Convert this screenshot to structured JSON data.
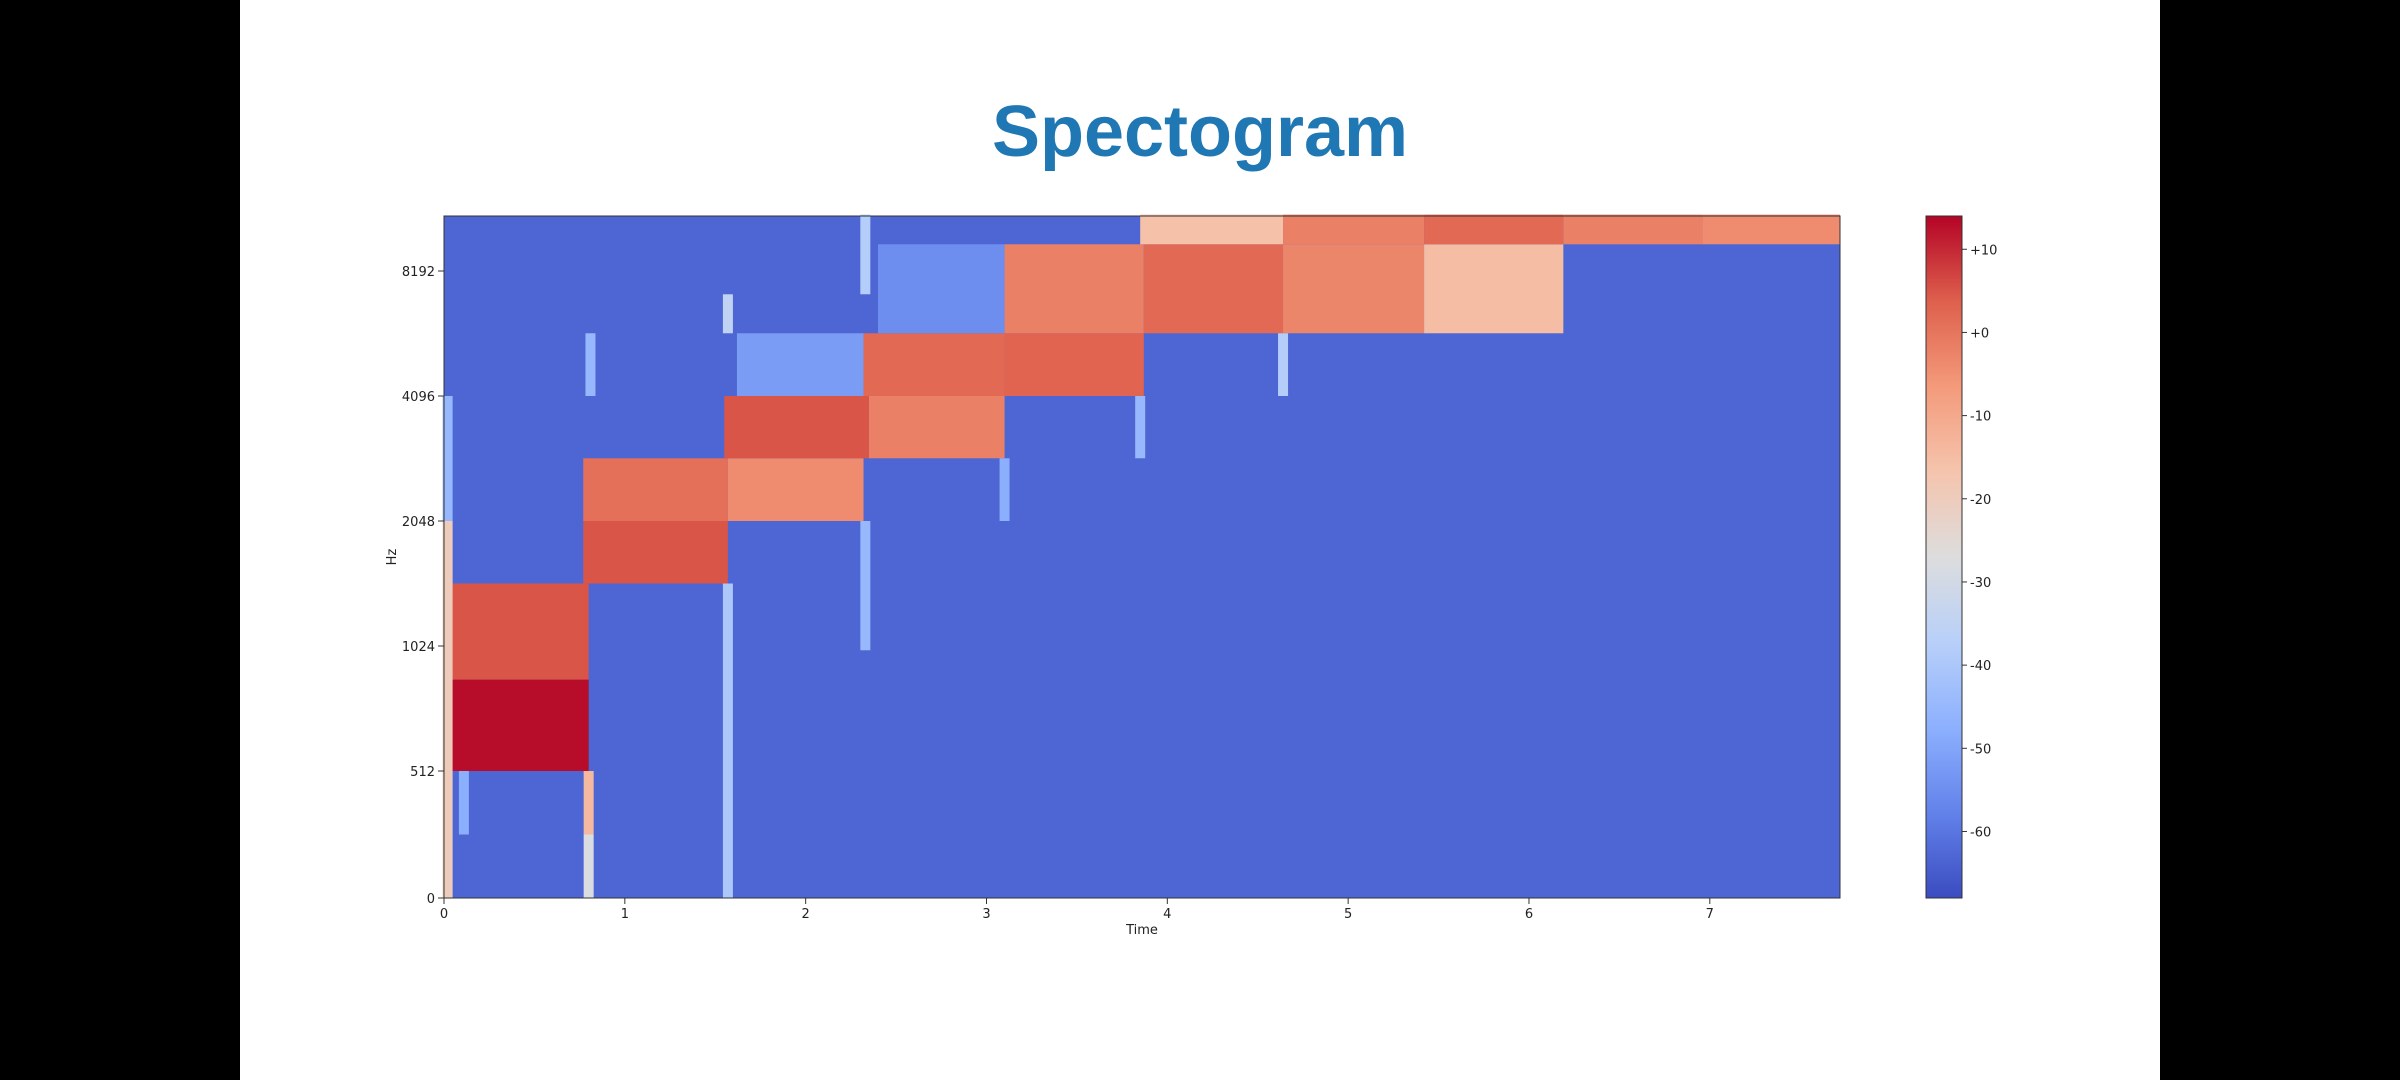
{
  "chart_data": {
    "type": "heatmap",
    "title": "Spectogram",
    "xlabel": "Time",
    "ylabel": "Hz",
    "xlim": [
      0,
      7.72
    ],
    "x_ticks": [
      0,
      1,
      2,
      3,
      4,
      5,
      6,
      7
    ],
    "y_ticks": [
      0,
      512,
      1024,
      2048,
      4096,
      8192
    ],
    "colorbar": {
      "ticks": [
        "+10",
        "+0",
        "-10",
        "-20",
        "-30",
        "-40",
        "-50",
        "-60"
      ],
      "tick_values": [
        10,
        0,
        -10,
        -20,
        -30,
        -40,
        -50,
        -60
      ],
      "range": [
        -68,
        14
      ],
      "colormap": "coolwarm"
    },
    "background_db": -63,
    "y_scale": "log2 (above 512 Hz)",
    "cells": [
      {
        "t0": 0.0,
        "t1": 0.8,
        "f0": 512,
        "f1": 850,
        "db": 13
      },
      {
        "t0": 0.0,
        "t1": 0.8,
        "f0": 850,
        "f1": 1448,
        "db": 5
      },
      {
        "t0": 0.77,
        "t1": 1.57,
        "f0": 1448,
        "f1": 2048,
        "db": 5
      },
      {
        "t0": 0.77,
        "t1": 1.57,
        "f0": 2048,
        "f1": 2900,
        "db": 1
      },
      {
        "t0": 1.57,
        "t1": 2.32,
        "f0": 2048,
        "f1": 2900,
        "db": -4
      },
      {
        "t0": 1.55,
        "t1": 2.35,
        "f0": 2900,
        "f1": 4096,
        "db": 5
      },
      {
        "t0": 2.35,
        "t1": 3.1,
        "f0": 2900,
        "f1": 4096,
        "db": -2
      },
      {
        "t0": 1.62,
        "t1": 2.32,
        "f0": 4096,
        "f1": 5800,
        "db": -52
      },
      {
        "t0": 2.32,
        "t1": 3.1,
        "f0": 4096,
        "f1": 5800,
        "db": 2
      },
      {
        "t0": 3.1,
        "t1": 3.87,
        "f0": 4096,
        "f1": 5800,
        "db": 3
      },
      {
        "t0": 2.4,
        "t1": 3.1,
        "f0": 5800,
        "f1": 9500,
        "db": -55
      },
      {
        "t0": 3.1,
        "t1": 3.87,
        "f0": 5800,
        "f1": 9500,
        "db": -2
      },
      {
        "t0": 3.87,
        "t1": 4.64,
        "f0": 5800,
        "f1": 9500,
        "db": 2
      },
      {
        "t0": 4.64,
        "t1": 5.42,
        "f0": 5800,
        "f1": 9500,
        "db": -3
      },
      {
        "t0": 5.42,
        "t1": 6.19,
        "f0": 5800,
        "f1": 9500,
        "db": -15
      },
      {
        "t0": 3.85,
        "t1": 4.64,
        "f0": 9500,
        "f1": 11200,
        "db": -16
      },
      {
        "t0": 4.64,
        "t1": 5.42,
        "f0": 9500,
        "f1": 11200,
        "db": -2
      },
      {
        "t0": 5.42,
        "t1": 6.19,
        "f0": 9500,
        "f1": 11200,
        "db": 2
      },
      {
        "t0": 6.19,
        "t1": 6.96,
        "f0": 9500,
        "f1": 11200,
        "db": -2
      },
      {
        "t0": 6.96,
        "t1": 7.72,
        "f0": 9500,
        "f1": 11200,
        "db": -4
      }
    ],
    "streaks": [
      {
        "t": 0.02,
        "f0": 0,
        "f1": 2048,
        "db": -20
      },
      {
        "t": 0.02,
        "f0": 2048,
        "f1": 4096,
        "db": -45
      },
      {
        "t": 0.11,
        "f0": 256,
        "f1": 512,
        "db": -48
      },
      {
        "t": 0.8,
        "f0": 0,
        "f1": 256,
        "db": -28
      },
      {
        "t": 0.8,
        "f0": 256,
        "f1": 512,
        "db": -14
      },
      {
        "t": 0.81,
        "f0": 4096,
        "f1": 5800,
        "db": -45
      },
      {
        "t": 1.57,
        "f0": 0,
        "f1": 1448,
        "db": -40
      },
      {
        "t": 1.57,
        "f0": 5800,
        "f1": 7200,
        "db": -35
      },
      {
        "t": 2.33,
        "f0": 7200,
        "f1": 11200,
        "db": -38
      },
      {
        "t": 2.33,
        "f0": 1000,
        "f1": 2048,
        "db": -45
      },
      {
        "t": 3.1,
        "f0": 2048,
        "f1": 2900,
        "db": -48
      },
      {
        "t": 3.85,
        "f0": 2900,
        "f1": 4096,
        "db": -45
      },
      {
        "t": 4.64,
        "f0": 4096,
        "f1": 5800,
        "db": -38
      }
    ]
  }
}
